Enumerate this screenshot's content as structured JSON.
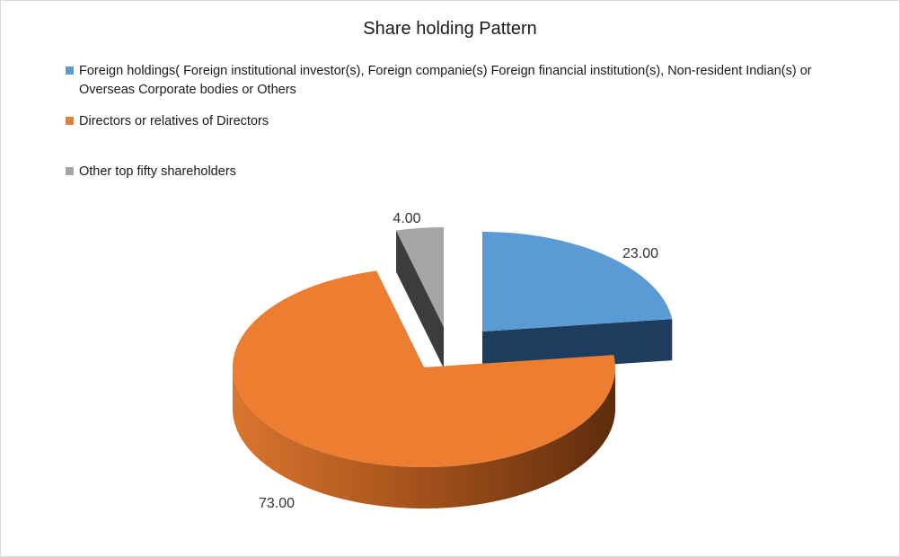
{
  "chart_data": {
    "type": "pie",
    "style": "3d-exploded",
    "title": "Share holding Pattern",
    "categories": [
      "Foreign holdings( Foreign institutional investor(s), Foreign companie(s) Foreign financial institution(s),  Non-resident Indian(s) or Overseas Corporate bodies or Others",
      "Directors or relatives of Directors",
      "Other top fifty shareholders"
    ],
    "values": [
      23,
      73,
      4
    ],
    "data_labels": [
      "23.00",
      "73.00",
      "4.00"
    ],
    "colors": [
      "#5b9bd5",
      "#ed7d31",
      "#a5a5a5"
    ],
    "legend_position": "top"
  }
}
